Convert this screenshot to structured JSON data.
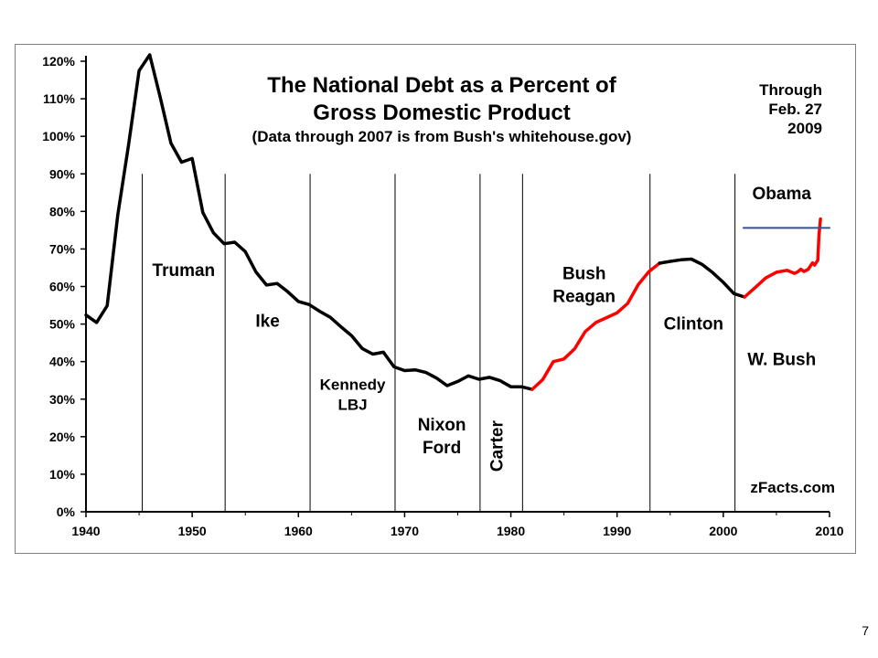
{
  "slide": {
    "number": "7"
  },
  "chart_data": {
    "type": "line",
    "title": [
      "The National Debt as a Percent of",
      "Gross Domestic Product"
    ],
    "subtitle": "(Data through 2007 is from Bush's whitehouse.gov)",
    "through_note": [
      "Through",
      "Feb. 27",
      "2009"
    ],
    "credit": "zFacts.com",
    "xlabel": "",
    "ylabel": "",
    "xlim": [
      1940,
      2010
    ],
    "ylim": [
      0,
      120
    ],
    "x_ticks": [
      1940,
      1950,
      1960,
      1970,
      1980,
      1990,
      2000,
      2010
    ],
    "y_ticks": [
      {
        "value": 0,
        "label": "0%"
      },
      {
        "value": 10,
        "label": "10%"
      },
      {
        "value": 20,
        "label": "20%"
      },
      {
        "value": 30,
        "label": "30%"
      },
      {
        "value": 40,
        "label": "40%"
      },
      {
        "value": 50,
        "label": "50%"
      },
      {
        "value": 60,
        "label": "60%"
      },
      {
        "value": 70,
        "label": "70%"
      },
      {
        "value": 80,
        "label": "80%"
      },
      {
        "value": 90,
        "label": "90%"
      },
      {
        "value": 100,
        "label": "100%"
      },
      {
        "value": 110,
        "label": "110%"
      },
      {
        "value": 120,
        "label": "120%"
      }
    ],
    "grid": false,
    "series": [
      {
        "color": "#000000",
        "points": [
          [
            1940,
            52.4
          ],
          [
            1941,
            50.4
          ],
          [
            1942,
            54.9
          ],
          [
            1943,
            79.1
          ],
          [
            1944,
            97.6
          ],
          [
            1945,
            117.5
          ],
          [
            1946,
            121.7
          ],
          [
            1947,
            110.3
          ],
          [
            1948,
            98.2
          ],
          [
            1949,
            93.1
          ],
          [
            1950,
            94.1
          ],
          [
            1951,
            79.7
          ],
          [
            1952,
            74.3
          ],
          [
            1953,
            71.4
          ],
          [
            1954,
            71.8
          ],
          [
            1955,
            69.3
          ],
          [
            1956,
            63.9
          ],
          [
            1957,
            60.4
          ],
          [
            1958,
            60.8
          ],
          [
            1959,
            58.6
          ],
          [
            1960,
            56.0
          ],
          [
            1961,
            55.2
          ],
          [
            1962,
            53.4
          ],
          [
            1963,
            51.8
          ],
          [
            1964,
            49.3
          ],
          [
            1965,
            46.9
          ],
          [
            1966,
            43.5
          ],
          [
            1967,
            42.0
          ],
          [
            1968,
            42.5
          ],
          [
            1969,
            38.6
          ],
          [
            1970,
            37.6
          ],
          [
            1971,
            37.8
          ],
          [
            1972,
            37.1
          ],
          [
            1973,
            35.6
          ],
          [
            1974,
            33.6
          ],
          [
            1975,
            34.7
          ],
          [
            1976,
            36.2
          ],
          [
            1977,
            35.3
          ],
          [
            1978,
            35.8
          ],
          [
            1979,
            34.9
          ],
          [
            1980,
            33.3
          ],
          [
            1981,
            33.3
          ],
          [
            1982,
            32.6
          ]
        ]
      },
      {
        "color": "#ff0000",
        "points": [
          [
            1982,
            32.6
          ],
          [
            1983,
            35.2
          ],
          [
            1984,
            40.0
          ],
          [
            1985,
            40.7
          ],
          [
            1986,
            43.4
          ],
          [
            1987,
            48.0
          ],
          [
            1988,
            50.4
          ],
          [
            1989,
            51.7
          ],
          [
            1990,
            53.0
          ],
          [
            1991,
            55.5
          ],
          [
            1992,
            60.5
          ],
          [
            1993,
            64.0
          ],
          [
            1994,
            66.2
          ]
        ]
      },
      {
        "color": "#000000",
        "points": [
          [
            1994,
            66.2
          ],
          [
            1995,
            66.7
          ],
          [
            1996,
            67.1
          ],
          [
            1997,
            67.3
          ],
          [
            1998,
            65.9
          ],
          [
            1999,
            63.7
          ],
          [
            2000,
            61.1
          ],
          [
            2001,
            58.1
          ],
          [
            2002,
            57.2
          ]
        ]
      },
      {
        "color": "#ff0000",
        "points": [
          [
            2002,
            57.2
          ],
          [
            2003,
            59.7
          ],
          [
            2004,
            62.3
          ],
          [
            2005,
            63.8
          ],
          [
            2006,
            64.3
          ],
          [
            2006.7,
            63.5
          ],
          [
            2007,
            63.9
          ],
          [
            2007.3,
            64.6
          ],
          [
            2007.6,
            64.0
          ],
          [
            2008,
            64.6
          ],
          [
            2008.4,
            66.3
          ],
          [
            2008.6,
            65.7
          ],
          [
            2008.9,
            67.0
          ],
          [
            2009.0,
            73.5
          ],
          [
            2009.15,
            78.0
          ]
        ]
      },
      {
        "color": "#3a4f9a",
        "points": [
          [
            2001.9,
            75.6
          ],
          [
            2010,
            75.6
          ]
        ]
      }
    ],
    "era_dividers": [
      1945.3,
      1953.1,
      1961.1,
      1969.1,
      1977.1,
      1981.1,
      1993.1,
      2001.1
    ],
    "divider_top": 90,
    "eras": [
      {
        "lines": [
          "Truman"
        ],
        "x": 1949.2,
        "y": 62.8,
        "anchor": "middle"
      },
      {
        "lines": [
          "Ike"
        ],
        "x": 1957.1,
        "y": 49.3,
        "anchor": "middle"
      },
      {
        "lines": [
          "Kennedy",
          "LBJ"
        ],
        "x": 1965.1,
        "y": 32.5,
        "anchor": "middle",
        "small": true
      },
      {
        "lines": [
          "Nixon",
          "Ford"
        ],
        "x": 1973.5,
        "y": 21.7,
        "anchor": "middle"
      },
      {
        "lines": [
          "Bush",
          "Reagan"
        ],
        "x": 1986.9,
        "y": 62.0,
        "anchor": "middle"
      },
      {
        "lines": [
          "Clinton"
        ],
        "x": 1997.2,
        "y": 48.6,
        "anchor": "middle"
      },
      {
        "lines": [
          "W. Bush"
        ],
        "x": 2005.5,
        "y": 39.1,
        "anchor": "middle"
      },
      {
        "lines": [
          "Obama"
        ],
        "x": 2005.5,
        "y": 83.3,
        "anchor": "middle"
      }
    ],
    "vertical_era": {
      "label": "Carter",
      "x": 1979.2,
      "y": 17.5
    }
  }
}
